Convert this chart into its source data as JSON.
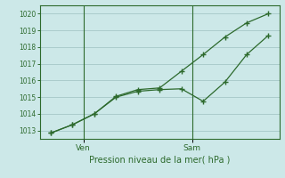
{
  "xlabel": "Pression niveau de la mer( hPa )",
  "background_color": "#cce8e8",
  "line_color": "#2d6a2d",
  "grid_color": "#aacccc",
  "ylim": [
    1012.5,
    1020.5
  ],
  "yticks": [
    1013,
    1014,
    1015,
    1016,
    1017,
    1018,
    1019,
    1020
  ],
  "series1_y": [
    1012.85,
    1013.35,
    1014.0,
    1015.0,
    1015.35,
    1015.45,
    1015.5,
    1014.75,
    1015.9,
    1017.55,
    1018.7
  ],
  "series2_y": [
    1012.85,
    1013.35,
    1014.0,
    1015.05,
    1015.45,
    1015.55,
    1016.55,
    1017.55,
    1018.6,
    1019.45,
    1020.0
  ],
  "n_points": 11,
  "ven_idx": 1.5,
  "sam_idx": 6.5
}
